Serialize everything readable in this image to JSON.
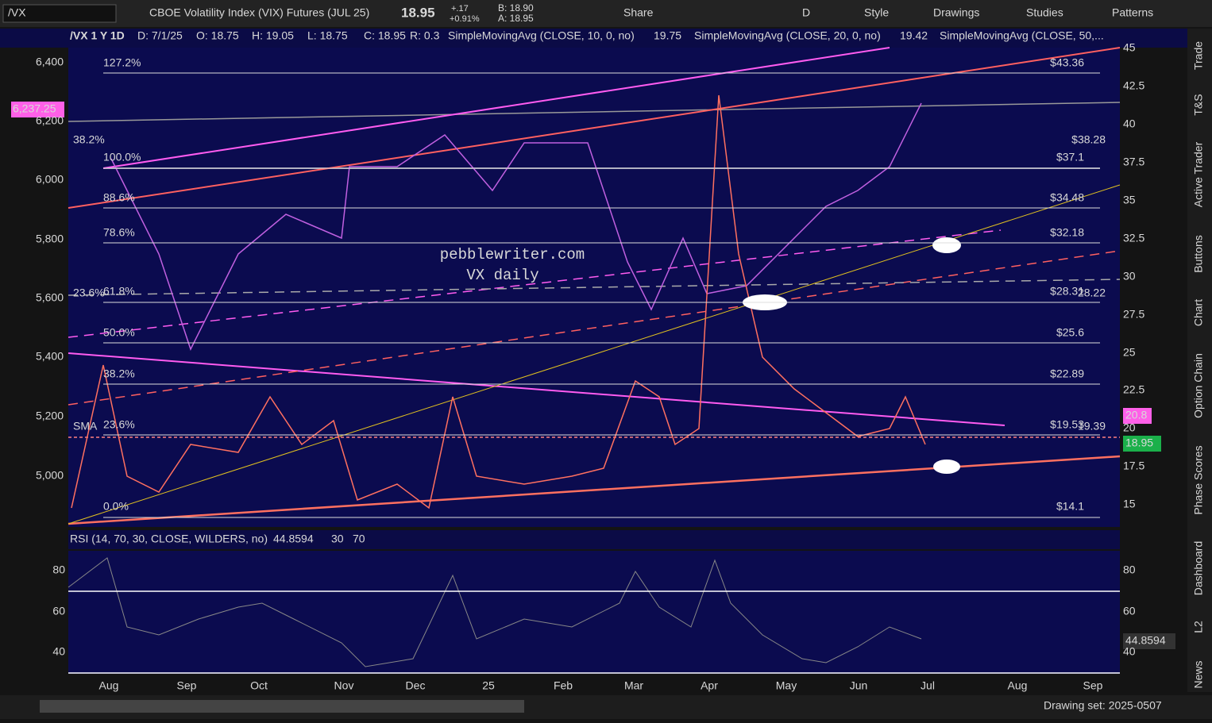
{
  "toolbar": {
    "symbol": "/VX",
    "description": "CBOE Volatility Index (VIX) Futures (JUL 25)",
    "last": "18.95",
    "change": "+.17",
    "change_pct": "+0.91%",
    "bid": "B: 18.90",
    "ask": "A: 18.95",
    "buttons": [
      "Share",
      "D",
      "Style",
      "Drawings",
      "Studies",
      "Patterns"
    ]
  },
  "header": {
    "title": "/VX 1 Y 1D",
    "fields": [
      "D: 7/1/25",
      "O: 18.75",
      "H: 19.05",
      "L: 18.75",
      "C: 18.95",
      "R: 0.3"
    ],
    "studies": [
      {
        "name": "SimpleMovingAvg (CLOSE, 10, 0, no)",
        "value": "19.75"
      },
      {
        "name": "SimpleMovingAvg (CLOSE, 20, 0, no)",
        "value": "19.42"
      },
      {
        "name": "SimpleMovingAvg (CLOSE, 50,..."
      }
    ]
  },
  "left_axis": {
    "ticks": [
      "6,400",
      "6,200",
      "6,000",
      "5,800",
      "5,600",
      "5,400",
      "5,200",
      "5,000"
    ],
    "tag": "6,237.25"
  },
  "right_axis": {
    "ticks": [
      "45",
      "42.5",
      "40",
      "37.5",
      "35",
      "32.5",
      "30",
      "27.5",
      "25",
      "22.5",
      "20",
      "17.5",
      "15"
    ],
    "tags": [
      "20.8",
      "18.95"
    ]
  },
  "fib": {
    "levels": [
      "127.2%",
      "100.0%",
      "88.6%",
      "78.6%",
      "61.8%",
      "50.0%",
      "38.2%",
      "23.6%",
      "0.0%"
    ],
    "prices": [
      "$43.36",
      "$37.1",
      "$34.48",
      "$32.18",
      "$28.31",
      "$25.6",
      "$22.89",
      "$19.53",
      "$14.1"
    ],
    "spx_levels": [
      "38.2%",
      "23.6%"
    ],
    "spx_prices": [
      "$38.28",
      "28.22"
    ],
    "sma_label": "SMA",
    "sma_price": "19.39"
  },
  "watermark": [
    "pebblewriter.com",
    "VX daily"
  ],
  "x_axis": [
    "Aug",
    "Sep",
    "Oct",
    "Nov",
    "Dec",
    "25",
    "Feb",
    "Mar",
    "Apr",
    "May",
    "Jun",
    "Jul",
    "Aug",
    "Sep"
  ],
  "rsi": {
    "title": "RSI (14, 70, 30, CLOSE, WILDERS, no)",
    "value": "44.8594",
    "low": "30",
    "high": "70",
    "ticks": [
      "80",
      "60",
      "40"
    ],
    "tag": "44.8594"
  },
  "side_tabs": [
    "Trade",
    "T&S",
    "Active Trader",
    "Buttons",
    "Chart",
    "Option Chain",
    "Phase Scores",
    "Dashboard",
    "L2",
    "News"
  ],
  "footer": {
    "drawing_set": "Drawing set: 2025-0507"
  }
}
